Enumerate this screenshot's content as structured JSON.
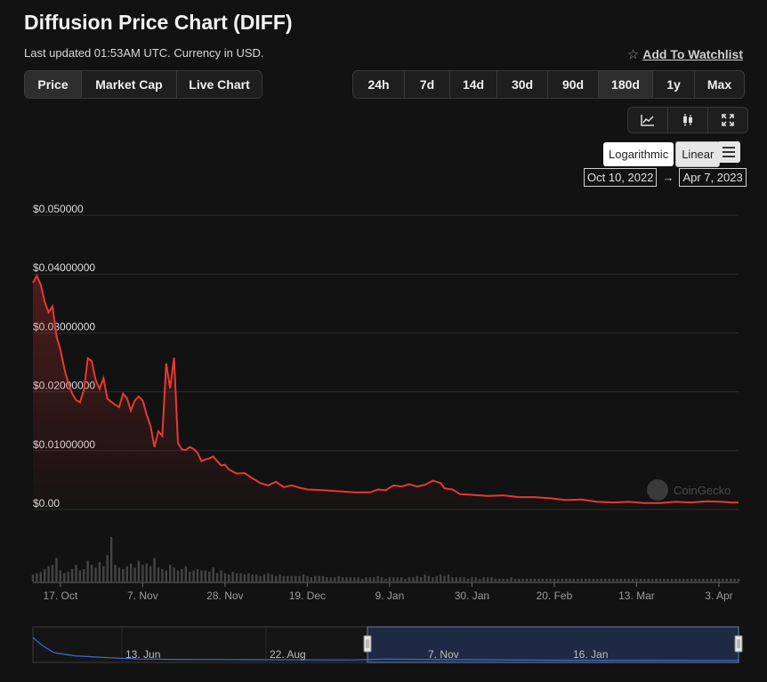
{
  "page": {
    "title": "Diffusion Price Chart (DIFF)",
    "subtitle": "Last updated 01:53AM UTC. Currency in USD.",
    "watchlist_label": "Add To Watchlist"
  },
  "view_tabs": [
    "Price",
    "Market Cap",
    "Live Chart"
  ],
  "active_view": "Price",
  "time_ranges": [
    "24h",
    "7d",
    "14d",
    "30d",
    "90d",
    "180d",
    "1y",
    "Max"
  ],
  "active_time_range": "180d",
  "chart_tools": [
    {
      "name": "line-chart-icon"
    },
    {
      "name": "candlestick-icon"
    },
    {
      "name": "fullscreen-icon"
    }
  ],
  "scale": {
    "log_label": "Logarithmic",
    "linear_label": "Linear",
    "active": "Linear"
  },
  "date_range": {
    "from": "Oct 10, 2022",
    "arrow": "→",
    "to": "Apr 7, 2023"
  },
  "watermark": "CoinGecko",
  "colors": {
    "line": "#e53935",
    "volume": "#444444",
    "navigator_line": "#3f6bd6",
    "navigator_fill": "#1e2a44"
  },
  "chart_data": {
    "type": "line",
    "y_ticks": [
      "$0.050000",
      "$0.04000000",
      "$0.03000000",
      "$0.02000000",
      "$0.01000000",
      "$0.00"
    ],
    "ylim": [
      0,
      0.05
    ],
    "x_ticks": [
      {
        "label": "17. Oct",
        "day": 7
      },
      {
        "label": "7. Nov",
        "day": 28
      },
      {
        "label": "28. Nov",
        "day": 49
      },
      {
        "label": "19. Dec",
        "day": 70
      },
      {
        "label": "9. Jan",
        "day": 91
      },
      {
        "label": "30. Jan",
        "day": 112
      },
      {
        "label": "20. Feb",
        "day": 133
      },
      {
        "label": "13. Mar",
        "day": 154
      },
      {
        "label": "3. Apr",
        "day": 175
      }
    ],
    "series": [
      {
        "points": [
          [
            0,
            0.0385
          ],
          [
            1,
            0.0397
          ],
          [
            2,
            0.0382
          ],
          [
            3,
            0.0353
          ],
          [
            4,
            0.0335
          ],
          [
            5,
            0.0345
          ],
          [
            6,
            0.0295
          ],
          [
            7,
            0.0272
          ],
          [
            8,
            0.024
          ],
          [
            9,
            0.0215
          ],
          [
            10,
            0.0197
          ],
          [
            11,
            0.0186
          ],
          [
            12,
            0.0182
          ],
          [
            13,
            0.0203
          ],
          [
            14,
            0.0257
          ],
          [
            15,
            0.0252
          ],
          [
            16,
            0.022
          ],
          [
            17,
            0.0205
          ],
          [
            18,
            0.0223
          ],
          [
            19,
            0.0188
          ],
          [
            20,
            0.0183
          ],
          [
            21,
            0.0178
          ],
          [
            22,
            0.0174
          ],
          [
            23,
            0.0197
          ],
          [
            24,
            0.0189
          ],
          [
            25,
            0.0168
          ],
          [
            26,
            0.0185
          ],
          [
            27,
            0.0192
          ],
          [
            28,
            0.0185
          ],
          [
            29,
            0.0161
          ],
          [
            30,
            0.0142
          ],
          [
            31,
            0.0106
          ],
          [
            32,
            0.0133
          ],
          [
            33,
            0.0125
          ],
          [
            34,
            0.0248
          ],
          [
            35,
            0.0206
          ],
          [
            36,
            0.0258
          ],
          [
            37,
            0.0113
          ],
          [
            38,
            0.0102
          ],
          [
            39,
            0.0101
          ],
          [
            40,
            0.0106
          ],
          [
            41,
            0.0103
          ],
          [
            42,
            0.0096
          ],
          [
            43,
            0.0082
          ],
          [
            44,
            0.0085
          ],
          [
            45,
            0.0087
          ],
          [
            46,
            0.009
          ],
          [
            47,
            0.0082
          ],
          [
            48,
            0.0075
          ],
          [
            49,
            0.0076
          ],
          [
            50,
            0.0068
          ],
          [
            52,
            0.0061
          ],
          [
            54,
            0.0062
          ],
          [
            56,
            0.0053
          ],
          [
            58,
            0.0045
          ],
          [
            60,
            0.0041
          ],
          [
            62,
            0.0047
          ],
          [
            64,
            0.0038
          ],
          [
            66,
            0.0041
          ],
          [
            68,
            0.0037
          ],
          [
            70,
            0.0034
          ],
          [
            74,
            0.0033
          ],
          [
            78,
            0.0031
          ],
          [
            82,
            0.0029
          ],
          [
            86,
            0.0029
          ],
          [
            88,
            0.0034
          ],
          [
            90,
            0.0033
          ],
          [
            92,
            0.0041
          ],
          [
            94,
            0.0039
          ],
          [
            96,
            0.0043
          ],
          [
            98,
            0.0039
          ],
          [
            100,
            0.0042
          ],
          [
            102,
            0.0049
          ],
          [
            104,
            0.0045
          ],
          [
            105,
            0.0036
          ],
          [
            107,
            0.0034
          ],
          [
            109,
            0.0026
          ],
          [
            112,
            0.0025
          ],
          [
            116,
            0.0023
          ],
          [
            120,
            0.0024
          ],
          [
            124,
            0.0021
          ],
          [
            128,
            0.0021
          ],
          [
            132,
            0.0019
          ],
          [
            136,
            0.0016
          ],
          [
            140,
            0.0017
          ],
          [
            144,
            0.0013
          ],
          [
            148,
            0.0012
          ],
          [
            152,
            0.0013
          ],
          [
            156,
            0.0011
          ],
          [
            160,
            0.0011
          ],
          [
            164,
            0.0013
          ],
          [
            168,
            0.0012
          ],
          [
            172,
            0.0014
          ],
          [
            176,
            0.0013
          ],
          [
            178,
            0.0012
          ],
          [
            180,
            0.0012
          ]
        ]
      }
    ],
    "volume": [
      5,
      6,
      7,
      9,
      11,
      12,
      17,
      8,
      6,
      7,
      9,
      12,
      8,
      9,
      15,
      12,
      10,
      14,
      11,
      19,
      32,
      12,
      10,
      9,
      11,
      13,
      10,
      15,
      12,
      13,
      11,
      17,
      10,
      9,
      8,
      12,
      10,
      8,
      9,
      11,
      7,
      8,
      9,
      8,
      8,
      7,
      10,
      6,
      8,
      6,
      5,
      7,
      6,
      6,
      5,
      6,
      5,
      5,
      4,
      5,
      6,
      5,
      4,
      5,
      4,
      4,
      4,
      4,
      4,
      5,
      4,
      3,
      4,
      4,
      4,
      3,
      3,
      3,
      4,
      3,
      3,
      3,
      3,
      3,
      2,
      3,
      3,
      3,
      4,
      3,
      2,
      3,
      3,
      3,
      3,
      2,
      3,
      3,
      4,
      3,
      5,
      4,
      3,
      4,
      5,
      4,
      5,
      3,
      3,
      3,
      3,
      2,
      3,
      3,
      2,
      3,
      3,
      3,
      2,
      2,
      2,
      2,
      3,
      2,
      2,
      2,
      2,
      2,
      2,
      2,
      2,
      2,
      2,
      2,
      2,
      2,
      2,
      2,
      2,
      2,
      2,
      2,
      2,
      2,
      2,
      2,
      2,
      2,
      2,
      2,
      2,
      2,
      2,
      2,
      2,
      2,
      2,
      2,
      2,
      2,
      2,
      2,
      2,
      2,
      2,
      2,
      2,
      2,
      2,
      2,
      2,
      2,
      2,
      2,
      2,
      2,
      2,
      2,
      2,
      2,
      2
    ],
    "navigator": {
      "labels": [
        "13. Jun",
        "22. Aug",
        "7. Nov",
        "16. Jan"
      ],
      "selection": [
        "Oct 10, 2022",
        "Apr 7, 2023"
      ]
    }
  }
}
